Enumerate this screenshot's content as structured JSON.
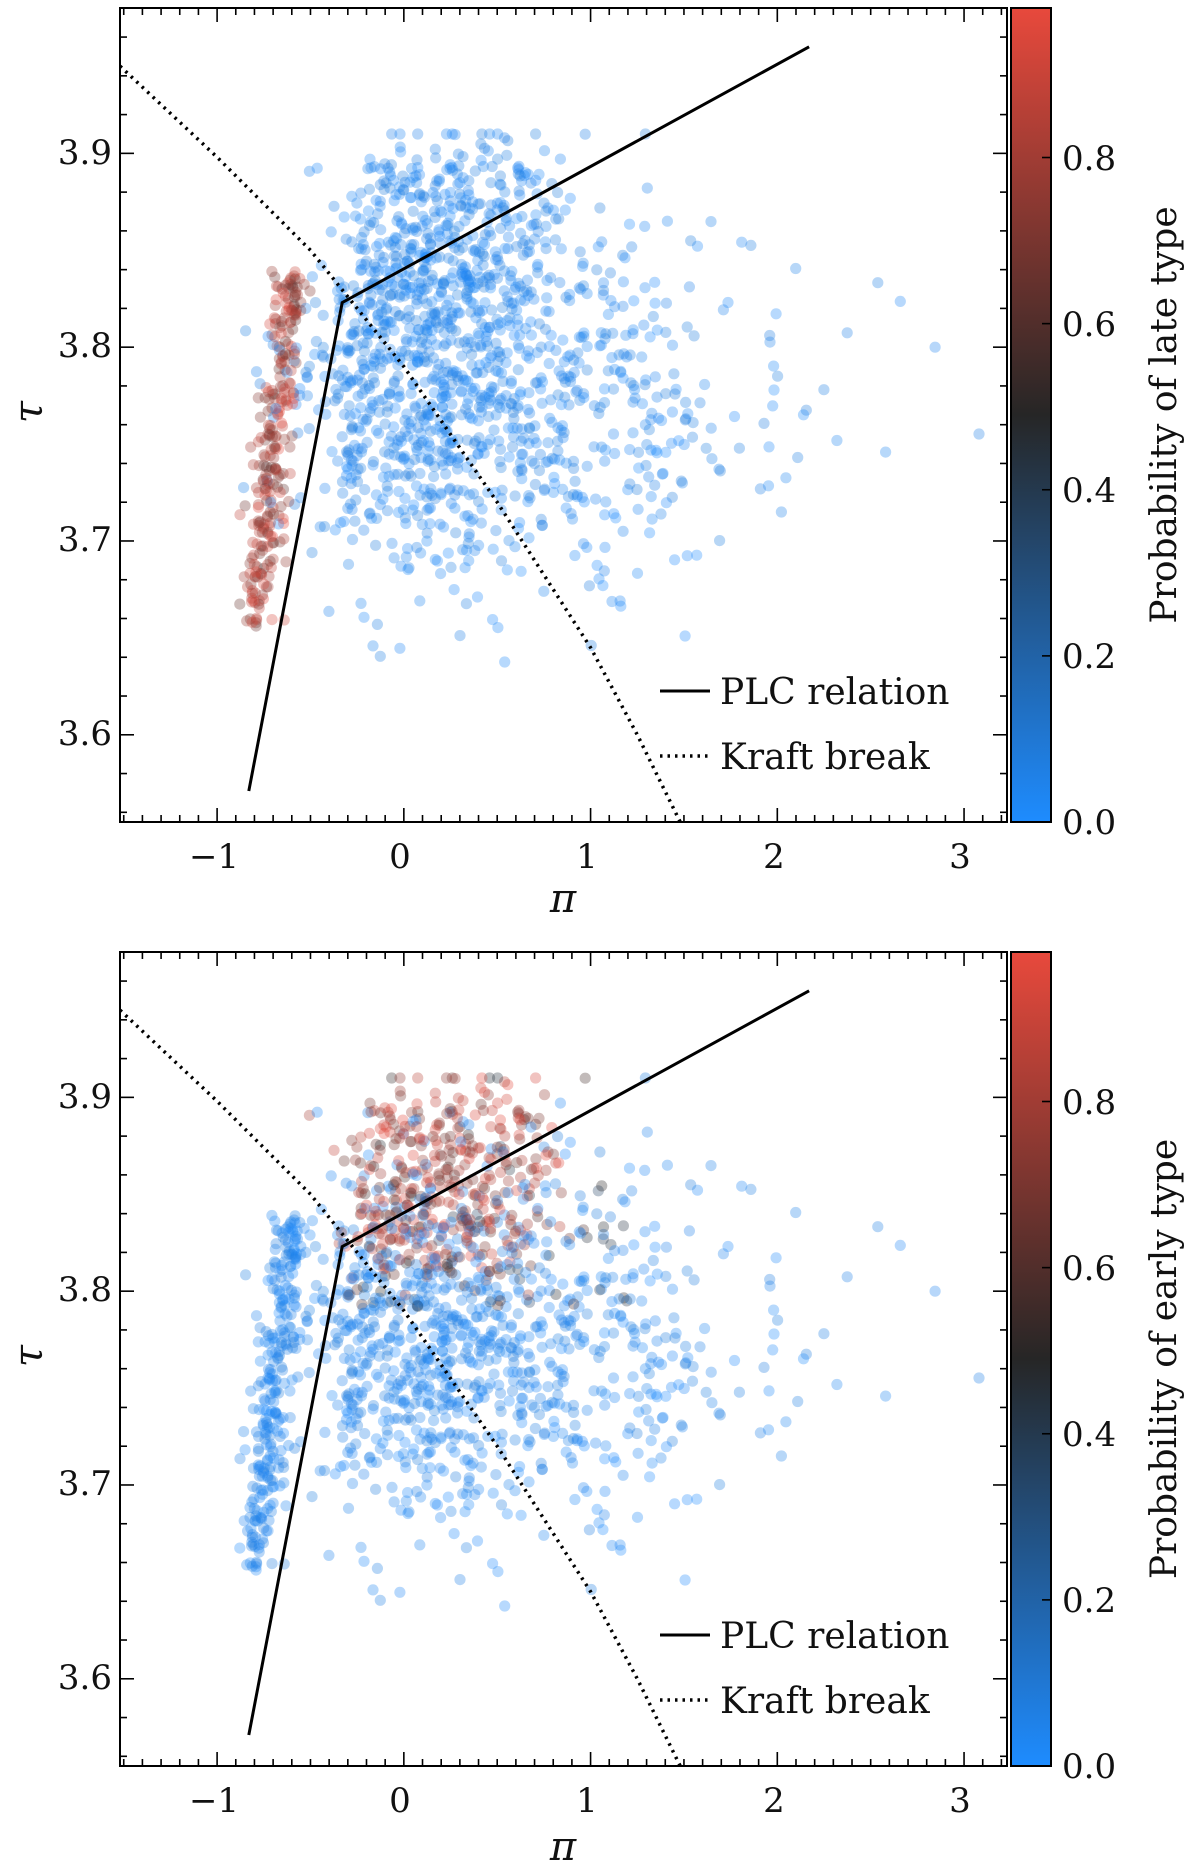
{
  "chart_data": [
    {
      "type": "scatter",
      "xlabel": "π",
      "ylabel": "τ",
      "xlim": [
        -1.52,
        3.23
      ],
      "ylim": [
        3.555,
        3.975
      ],
      "xticks": [
        "−1",
        "0",
        "1",
        "2",
        "3"
      ],
      "xtick_values": [
        -1,
        0,
        1,
        2,
        3
      ],
      "yticks": [
        "3.6",
        "3.7",
        "3.8",
        "3.9"
      ],
      "ytick_values": [
        3.6,
        3.7,
        3.8,
        3.9
      ],
      "colorbar_label": "Probability of late type",
      "colorbar_ticks": [
        "0.0",
        "0.2",
        "0.4",
        "0.6",
        "0.8"
      ],
      "colorbar_tick_values": [
        0.0,
        0.2,
        0.4,
        0.6,
        0.8
      ],
      "colorbar_range": [
        0.0,
        0.98
      ],
      "highlight_group": "late",
      "legend": {
        "position": "lower-right",
        "entries": [
          "PLC relation",
          "Kraft break"
        ]
      },
      "plc_relation": {
        "x": [
          -0.83,
          -0.33,
          2.17
        ],
        "y": [
          3.571,
          3.823,
          3.955
        ]
      },
      "kraft_break": {
        "x": [
          -1.52,
          -1.0,
          -0.5,
          0.0,
          0.5,
          1.0,
          1.25,
          1.48
        ],
        "y": [
          3.945,
          3.898,
          3.85,
          3.79,
          3.72,
          3.645,
          3.6,
          3.555
        ]
      },
      "point_count": 1700
    },
    {
      "type": "scatter",
      "xlabel": "π",
      "ylabel": "τ",
      "xlim": [
        -1.52,
        3.23
      ],
      "ylim": [
        3.555,
        3.975
      ],
      "xticks": [
        "−1",
        "0",
        "1",
        "2",
        "3"
      ],
      "xtick_values": [
        -1,
        0,
        1,
        2,
        3
      ],
      "yticks": [
        "3.6",
        "3.7",
        "3.8",
        "3.9"
      ],
      "ytick_values": [
        3.6,
        3.7,
        3.8,
        3.9
      ],
      "colorbar_label": "Probability of early type",
      "colorbar_ticks": [
        "0.0",
        "0.2",
        "0.4",
        "0.6",
        "0.8"
      ],
      "colorbar_tick_values": [
        0.0,
        0.2,
        0.4,
        0.6,
        0.8
      ],
      "colorbar_range": [
        0.0,
        0.98
      ],
      "highlight_group": "early",
      "legend": {
        "position": "lower-right",
        "entries": [
          "PLC relation",
          "Kraft break"
        ]
      },
      "plc_relation": {
        "x": [
          -0.83,
          -0.33,
          2.17
        ],
        "y": [
          3.571,
          3.823,
          3.955
        ]
      },
      "kraft_break": {
        "x": [
          -1.52,
          -1.0,
          -0.5,
          0.0,
          0.5,
          1.0,
          1.25,
          1.48
        ],
        "y": [
          3.945,
          3.898,
          3.85,
          3.79,
          3.72,
          3.645,
          3.6,
          3.555
        ]
      },
      "point_count": 1700
    }
  ],
  "colors": {
    "low": "#1e8cff",
    "mid": "#262626",
    "high": "#e8493c",
    "line": "#000000"
  }
}
